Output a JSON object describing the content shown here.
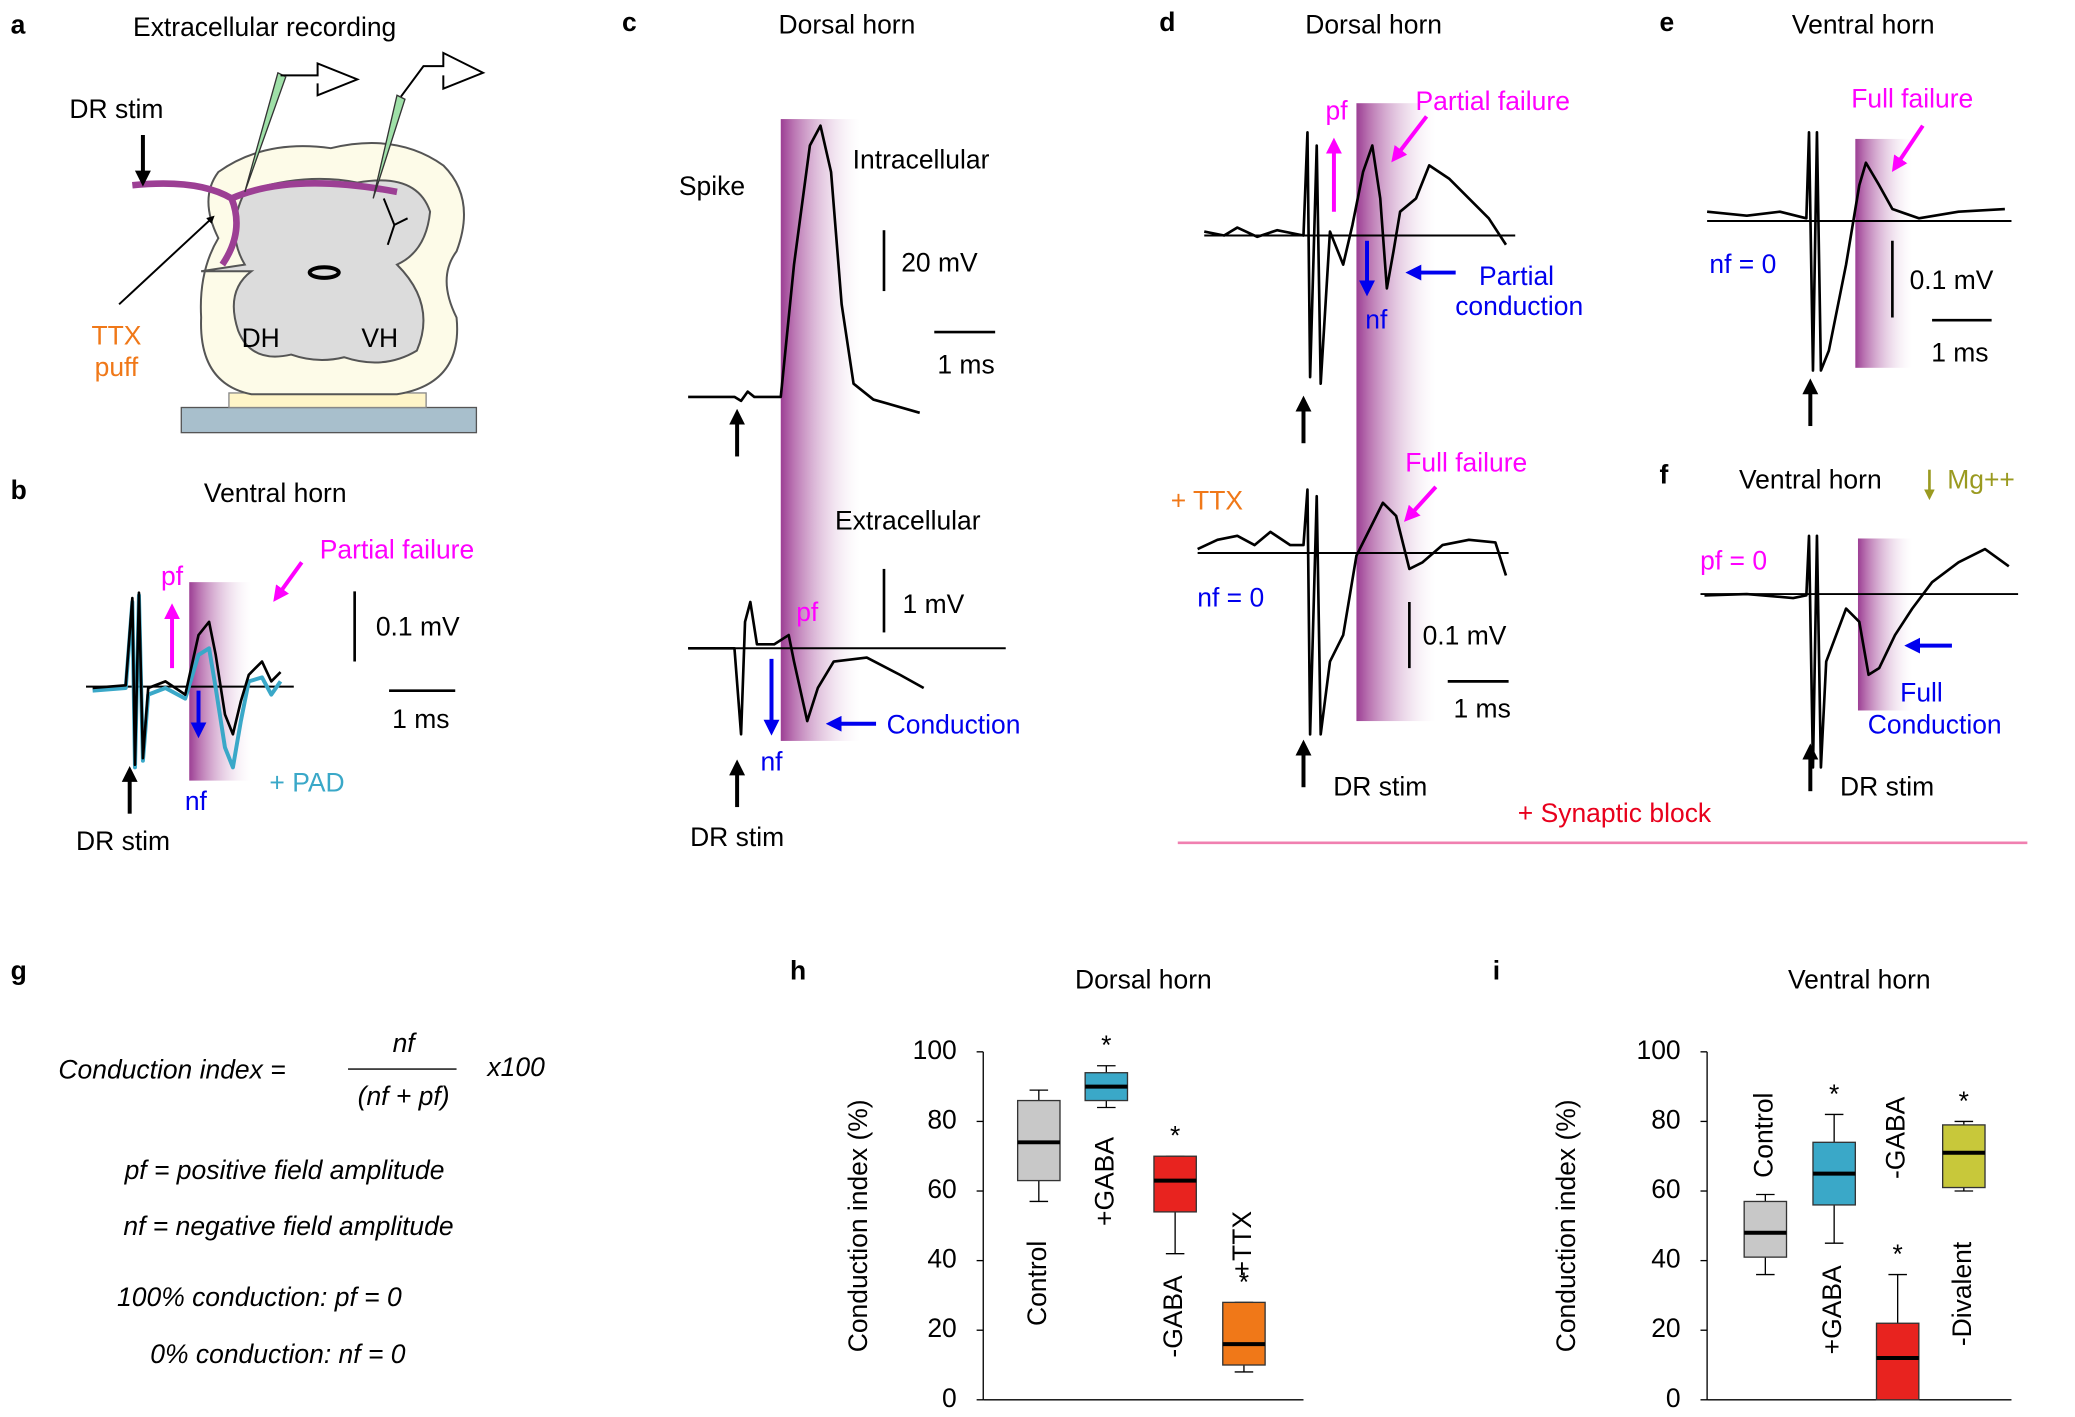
{
  "panel_labels": [
    "a",
    "b",
    "c",
    "d",
    "e",
    "f",
    "g",
    "h",
    "i"
  ],
  "panel_a": {
    "title": "Extracellular recording",
    "dr_stim": "DR stim",
    "ttx": "TTX",
    "puff": "puff",
    "dh": "DH",
    "vh": "VH"
  },
  "panel_b": {
    "title": "Ventral horn",
    "failure": "Partial failure",
    "pf": "pf",
    "scale_v": "0.1 mV",
    "scale_t": "1 ms",
    "nf": "nf",
    "pad": "+ PAD",
    "dr_stim": "DR stim"
  },
  "panel_c": {
    "title": "Dorsal horn",
    "intracellular": "Intracellular",
    "spike": "Spike",
    "scale_v1": "20 mV",
    "scale_t": "1 ms",
    "extracellular": "Extracellular",
    "scale_v2": "1 mV",
    "pf": "pf",
    "conduction": "Conduction",
    "nf": "nf",
    "dr_stim": "DR stim"
  },
  "panel_d": {
    "title": "Dorsal horn",
    "pf": "pf",
    "partial_failure": "Partial failure",
    "partial": "Partial",
    "conduction": "conduction",
    "nf": "nf",
    "ttx": "+ TTX",
    "full_failure": "Full failure",
    "nf_zero": "nf = 0",
    "scale_v": "0.1 mV",
    "scale_t": "1 ms",
    "dr_stim": "DR stim",
    "synaptic_block": "+ Synaptic block"
  },
  "panel_e": {
    "title": "Ventral horn",
    "full_failure": "Full failure",
    "nf_zero": "nf = 0",
    "scale_v": "0.1 mV",
    "scale_t": "1 ms"
  },
  "panel_f": {
    "title": "Ventral horn",
    "mg": "Mg++",
    "pf_zero": "pf = 0",
    "full": "Full",
    "conduction": "Conduction",
    "dr_stim": "DR stim"
  },
  "panel_g": {
    "lhs": "Conduction index =",
    "numerator": "nf",
    "denominator": "(nf + pf)",
    "factor": "x100",
    "pf_def": "pf = positive field amplitude",
    "nf_def": "nf = negative field amplitude",
    "full": "100% conduction: pf = 0",
    "zero": "0% conduction: nf = 0"
  },
  "chart_data": [
    {
      "type": "box",
      "title": "Dorsal horn",
      "y_label": "Conduction index (%)",
      "categories": [
        "Control",
        "+GABA",
        "-GABA",
        "+TTX"
      ],
      "boxes": [
        {
          "min": 57,
          "q1": 63,
          "median": 74,
          "q3": 86,
          "max": 89
        },
        {
          "min": 84,
          "q1": 86,
          "median": 90,
          "q3": 94,
          "max": 96
        },
        {
          "min": 42,
          "q1": 54,
          "median": 63,
          "q3": 70,
          "max": 70
        },
        {
          "min": 8,
          "q1": 10,
          "median": 16,
          "q3": 28,
          "max": 28
        }
      ],
      "colors": [
        "#c8c8c8",
        "#3aa8c8",
        "#e8231f",
        "#f07818"
      ],
      "significant": [
        false,
        true,
        true,
        true
      ],
      "asterisk": "*",
      "ylim": [
        0,
        100
      ],
      "yticks": [
        0,
        20,
        40,
        60,
        80,
        100
      ]
    },
    {
      "type": "box",
      "title": "Ventral horn",
      "y_label": "Conduction index (%)",
      "categories": [
        "Control",
        "+GABA",
        "-GABA",
        "-Divalent"
      ],
      "boxes": [
        {
          "min": 36,
          "q1": 41,
          "median": 48,
          "q3": 57,
          "max": 59
        },
        {
          "min": 45,
          "q1": 56,
          "median": 65,
          "q3": 74,
          "max": 82
        },
        {
          "min": 0,
          "q1": 0,
          "median": 12,
          "q3": 22,
          "max": 36
        },
        {
          "min": 60,
          "q1": 61,
          "median": 71,
          "q3": 79,
          "max": 80
        }
      ],
      "colors": [
        "#c8c8c8",
        "#3aa8c8",
        "#e8231f",
        "#c8c83a"
      ],
      "significant": [
        false,
        true,
        true,
        true
      ],
      "asterisk": "*",
      "ylim": [
        0,
        100
      ],
      "yticks": [
        0,
        20,
        40,
        60,
        80,
        100
      ]
    }
  ]
}
